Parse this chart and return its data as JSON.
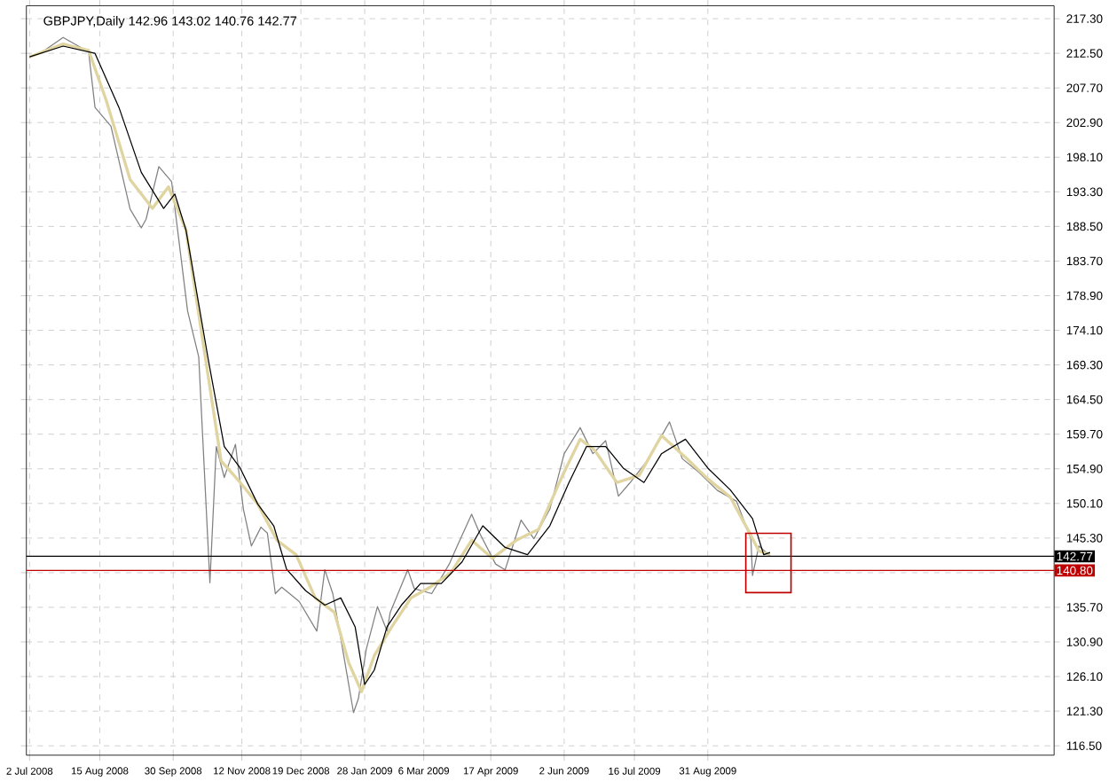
{
  "chart_data": {
    "type": "line",
    "title": "GBPJPY,Daily 142.96 143.02 140.76 142.77",
    "series": [
      {
        "color": "#808080",
        "x": [
          "2008-07-02",
          "2008-07-12",
          "2008-07-23",
          "2008-08-08",
          "2008-08-12",
          "2008-08-22",
          "2008-09-03",
          "2008-09-10",
          "2008-09-13",
          "2008-09-21",
          "2008-09-29",
          "2008-10-04",
          "2008-10-09",
          "2008-10-16",
          "2008-10-23",
          "2008-10-27",
          "2008-11-01",
          "2008-11-08",
          "2008-11-13",
          "2008-11-18",
          "2008-11-24",
          "2008-11-28",
          "2008-12-03",
          "2008-12-07",
          "2008-12-18",
          "2008-12-29",
          "2009-01-03",
          "2009-01-08",
          "2009-01-13",
          "2009-01-21",
          "2009-01-24",
          "2009-01-29",
          "2009-02-05",
          "2009-02-11",
          "2009-02-13",
          "2009-02-24",
          "2009-02-28",
          "2009-03-11",
          "2009-03-22",
          "2009-03-27",
          "2009-04-05",
          "2009-04-10",
          "2009-04-20",
          "2009-04-26",
          "2009-05-06",
          "2009-05-14",
          "2009-05-24",
          "2009-06-02",
          "2009-06-12",
          "2009-06-20",
          "2009-06-28",
          "2009-07-06",
          "2009-07-13",
          "2009-07-25",
          "2009-08-07",
          "2009-08-15",
          "2009-08-25",
          "2009-09-06",
          "2009-09-18",
          "2009-09-27",
          "2009-09-28",
          "2009-10-02",
          "2009-10-09"
        ],
        "values": [
          211.9,
          213.0,
          214.7,
          212.7,
          205.0,
          202.4,
          190.9,
          188.3,
          189.5,
          196.8,
          194.7,
          185.8,
          176.8,
          170.4,
          139.1,
          158.0,
          153.7,
          158.3,
          149.3,
          144.2,
          146.8,
          146.0,
          137.6,
          138.5,
          136.5,
          132.4,
          140.9,
          137.6,
          131.4,
          121.1,
          123.0,
          129.9,
          135.8,
          132.4,
          135.0,
          140.9,
          138.3,
          137.6,
          141.7,
          144.2,
          148.6,
          146.0,
          141.7,
          140.9,
          147.8,
          145.2,
          149.3,
          157.0,
          160.6,
          157.0,
          158.8,
          151.1,
          152.9,
          156.3,
          161.4,
          156.3,
          154.5,
          151.9,
          150.4,
          145.2,
          140.1,
          144.2,
          142.8
        ]
      },
      {
        "color": "#e0d4a0",
        "x": [
          "2008-07-02",
          "2008-07-23",
          "2008-08-08",
          "2008-08-19",
          "2008-09-03",
          "2008-09-17",
          "2008-09-27",
          "2008-10-08",
          "2008-10-19",
          "2008-10-30",
          "2008-11-11",
          "2008-11-22",
          "2008-12-04",
          "2008-12-16",
          "2008-12-28",
          "2009-01-09",
          "2009-01-18",
          "2009-01-26",
          "2009-02-03",
          "2009-02-14",
          "2009-02-26",
          "2009-03-10",
          "2009-03-23",
          "2009-04-05",
          "2009-04-18",
          "2009-05-03",
          "2009-05-17",
          "2009-06-01",
          "2009-06-12",
          "2009-06-21",
          "2009-07-05",
          "2009-07-19",
          "2009-08-02",
          "2009-08-17",
          "2009-08-31",
          "2009-09-14",
          "2009-09-25",
          "2009-10-02",
          "2009-10-09"
        ],
        "values": [
          212.0,
          213.8,
          212.9,
          206.0,
          195.0,
          191.0,
          194.0,
          188.0,
          172.0,
          156.0,
          153.0,
          150.0,
          145.0,
          143.0,
          137.0,
          135.0,
          128.0,
          124.0,
          129.0,
          133.0,
          137.0,
          138.5,
          140.5,
          145.0,
          142.5,
          145.0,
          146.5,
          154.0,
          159.0,
          157.5,
          153.0,
          154.0,
          159.5,
          156.5,
          153.5,
          151.0,
          146.5,
          143.5,
          143.0
        ]
      },
      {
        "color": "#000000",
        "x": [
          "2008-07-02",
          "2008-07-23",
          "2008-08-12",
          "2008-08-27",
          "2008-09-10",
          "2008-09-24",
          "2008-10-01",
          "2008-10-08",
          "2008-10-22",
          "2008-11-01",
          "2008-11-11",
          "2008-11-22",
          "2008-12-02",
          "2008-12-10",
          "2008-12-22",
          "2009-01-03",
          "2009-01-13",
          "2009-01-22",
          "2009-01-28",
          "2009-02-03",
          "2009-02-11",
          "2009-02-20",
          "2009-03-04",
          "2009-03-17",
          "2009-03-30",
          "2009-04-12",
          "2009-04-26",
          "2009-05-10",
          "2009-05-24",
          "2009-06-05",
          "2009-06-16",
          "2009-06-28",
          "2009-07-09",
          "2009-07-22",
          "2009-08-02",
          "2009-08-17",
          "2009-08-31",
          "2009-09-14",
          "2009-09-28",
          "2009-10-05",
          "2009-10-09"
        ],
        "values": [
          212.0,
          213.5,
          212.5,
          205.0,
          196.0,
          191.0,
          193.0,
          188.0,
          170.0,
          158.0,
          155.0,
          150.0,
          147.0,
          141.0,
          138.0,
          136.0,
          137.0,
          133.0,
          125.0,
          127.0,
          133.0,
          136.0,
          139.0,
          139.0,
          142.0,
          147.0,
          144.0,
          143.0,
          147.0,
          153.0,
          158.0,
          158.0,
          155.0,
          153.0,
          157.0,
          159.0,
          155.0,
          152.0,
          148.0,
          143.0,
          143.3
        ]
      }
    ],
    "xlim": [
      "2008-06-30",
      "2010-04-05"
    ],
    "ylim": [
      115.2,
      219.1
    ],
    "xticks": [
      {
        "value": "2008-07-02",
        "label": "2 Jul 2008"
      },
      {
        "value": "2008-08-15",
        "label": "15 Aug 2008"
      },
      {
        "value": "2008-09-30",
        "label": "30 Sep 2008"
      },
      {
        "value": "2008-11-12",
        "label": "12 Nov 2008"
      },
      {
        "value": "2008-12-19",
        "label": "19 Dec 2008"
      },
      {
        "value": "2009-01-28",
        "label": "28 Jan 2009"
      },
      {
        "value": "2009-03-06",
        "label": "6 Mar 2009"
      },
      {
        "value": "2009-04-17",
        "label": "17 Apr 2009"
      },
      {
        "value": "2009-06-02",
        "label": "2 Jun 2009"
      },
      {
        "value": "2009-07-16",
        "label": "16 Jul 2009"
      },
      {
        "value": "2009-08-31",
        "label": "31 Aug 2009"
      }
    ],
    "yticks": [
      {
        "value": 116.5,
        "label": "116.50"
      },
      {
        "value": 121.3,
        "label": "121.30"
      },
      {
        "value": 126.1,
        "label": "126.10"
      },
      {
        "value": 130.9,
        "label": "130.90"
      },
      {
        "value": 135.7,
        "label": "135.70"
      },
      {
        "value": 140.5,
        "label": null
      },
      {
        "value": 145.3,
        "label": "145.30"
      },
      {
        "value": 150.1,
        "label": "150.10"
      },
      {
        "value": 154.9,
        "label": "154.90"
      },
      {
        "value": 159.7,
        "label": "159.70"
      },
      {
        "value": 164.5,
        "label": "164.50"
      },
      {
        "value": 169.3,
        "label": "169.30"
      },
      {
        "value": 174.1,
        "label": "174.10"
      },
      {
        "value": 178.9,
        "label": "178.90"
      },
      {
        "value": 183.7,
        "label": "183.70"
      },
      {
        "value": 188.5,
        "label": "188.50"
      },
      {
        "value": 193.3,
        "label": "193.30"
      },
      {
        "value": 198.1,
        "label": "198.10"
      },
      {
        "value": 202.9,
        "label": "202.90"
      },
      {
        "value": 207.7,
        "label": "207.70"
      },
      {
        "value": 212.5,
        "label": "212.50"
      },
      {
        "value": 217.3,
        "label": "217.30"
      }
    ],
    "ref_lines": [
      {
        "axis": "y",
        "value": 142.77,
        "label": "142.77",
        "color": "#000000"
      },
      {
        "axis": "y",
        "value": 140.8,
        "label": "140.80",
        "color": "#c00000"
      }
    ],
    "grid": true,
    "marker": "none",
    "line_style": "solid"
  }
}
